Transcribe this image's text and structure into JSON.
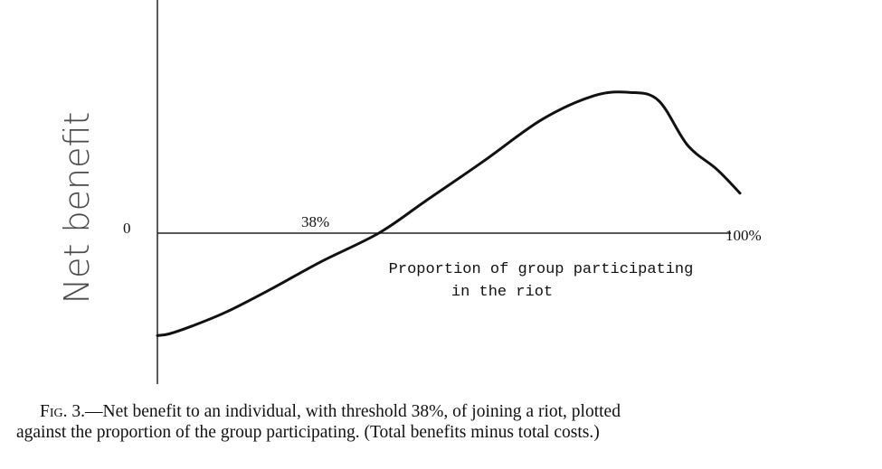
{
  "chart_data": {
    "type": "line",
    "ylabel": "Net benefit",
    "xlabel_lines": [
      "Proportion of group participating",
      "in the riot"
    ],
    "zero_label": "0",
    "threshold_label": "38%",
    "end_label": "100%",
    "threshold": 0.38,
    "xlim": [
      0,
      1
    ],
    "ylim": [
      -1,
      1.02
    ],
    "grid": false,
    "legend": "none",
    "x": [
      0,
      0.02,
      0.06,
      0.12,
      0.2,
      0.28,
      0.38,
      0.46,
      0.56,
      0.66,
      0.75,
      0.81,
      0.86,
      0.91,
      0.96,
      1.0
    ],
    "y": [
      -0.64,
      -0.63,
      -0.58,
      -0.49,
      -0.34,
      -0.18,
      0.0,
      0.2,
      0.45,
      0.71,
      0.86,
      0.88,
      0.83,
      0.55,
      0.4,
      0.25
    ]
  },
  "caption": {
    "prefix": "Fig. 3.",
    "line1": "—Net benefit to an individual, with threshold 38%, of joining a riot, plotted",
    "line2": "against the proportion of the group participating. (Total benefits minus total costs.)"
  }
}
